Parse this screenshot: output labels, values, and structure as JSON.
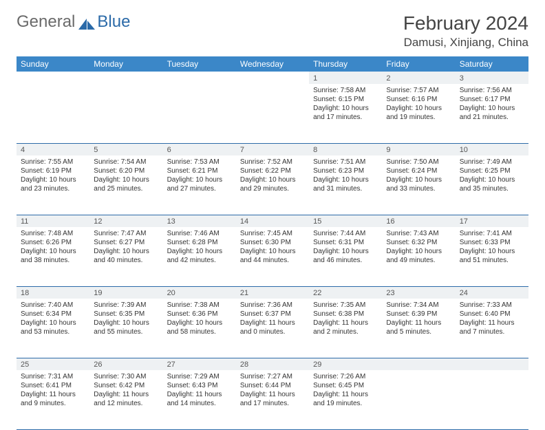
{
  "brand": {
    "general": "General",
    "blue": "Blue"
  },
  "title": "February 2024",
  "location": "Damusi, Xinjiang, China",
  "colors": {
    "header_bg": "#3b87c8",
    "border": "#2b6aa8",
    "daynum_bg": "#eef1f3",
    "text": "#333333",
    "logo_blue": "#2b6aa8",
    "logo_grey": "#6a6a6a"
  },
  "day_headers": [
    "Sunday",
    "Monday",
    "Tuesday",
    "Wednesday",
    "Thursday",
    "Friday",
    "Saturday"
  ],
  "layout": {
    "first_weekday_index": 4,
    "days_in_month": 29
  },
  "days": {
    "1": {
      "sunrise": "7:58 AM",
      "sunset": "6:15 PM",
      "daylight": "10 hours and 17 minutes."
    },
    "2": {
      "sunrise": "7:57 AM",
      "sunset": "6:16 PM",
      "daylight": "10 hours and 19 minutes."
    },
    "3": {
      "sunrise": "7:56 AM",
      "sunset": "6:17 PM",
      "daylight": "10 hours and 21 minutes."
    },
    "4": {
      "sunrise": "7:55 AM",
      "sunset": "6:19 PM",
      "daylight": "10 hours and 23 minutes."
    },
    "5": {
      "sunrise": "7:54 AM",
      "sunset": "6:20 PM",
      "daylight": "10 hours and 25 minutes."
    },
    "6": {
      "sunrise": "7:53 AM",
      "sunset": "6:21 PM",
      "daylight": "10 hours and 27 minutes."
    },
    "7": {
      "sunrise": "7:52 AM",
      "sunset": "6:22 PM",
      "daylight": "10 hours and 29 minutes."
    },
    "8": {
      "sunrise": "7:51 AM",
      "sunset": "6:23 PM",
      "daylight": "10 hours and 31 minutes."
    },
    "9": {
      "sunrise": "7:50 AM",
      "sunset": "6:24 PM",
      "daylight": "10 hours and 33 minutes."
    },
    "10": {
      "sunrise": "7:49 AM",
      "sunset": "6:25 PM",
      "daylight": "10 hours and 35 minutes."
    },
    "11": {
      "sunrise": "7:48 AM",
      "sunset": "6:26 PM",
      "daylight": "10 hours and 38 minutes."
    },
    "12": {
      "sunrise": "7:47 AM",
      "sunset": "6:27 PM",
      "daylight": "10 hours and 40 minutes."
    },
    "13": {
      "sunrise": "7:46 AM",
      "sunset": "6:28 PM",
      "daylight": "10 hours and 42 minutes."
    },
    "14": {
      "sunrise": "7:45 AM",
      "sunset": "6:30 PM",
      "daylight": "10 hours and 44 minutes."
    },
    "15": {
      "sunrise": "7:44 AM",
      "sunset": "6:31 PM",
      "daylight": "10 hours and 46 minutes."
    },
    "16": {
      "sunrise": "7:43 AM",
      "sunset": "6:32 PM",
      "daylight": "10 hours and 49 minutes."
    },
    "17": {
      "sunrise": "7:41 AM",
      "sunset": "6:33 PM",
      "daylight": "10 hours and 51 minutes."
    },
    "18": {
      "sunrise": "7:40 AM",
      "sunset": "6:34 PM",
      "daylight": "10 hours and 53 minutes."
    },
    "19": {
      "sunrise": "7:39 AM",
      "sunset": "6:35 PM",
      "daylight": "10 hours and 55 minutes."
    },
    "20": {
      "sunrise": "7:38 AM",
      "sunset": "6:36 PM",
      "daylight": "10 hours and 58 minutes."
    },
    "21": {
      "sunrise": "7:36 AM",
      "sunset": "6:37 PM",
      "daylight": "11 hours and 0 minutes."
    },
    "22": {
      "sunrise": "7:35 AM",
      "sunset": "6:38 PM",
      "daylight": "11 hours and 2 minutes."
    },
    "23": {
      "sunrise": "7:34 AM",
      "sunset": "6:39 PM",
      "daylight": "11 hours and 5 minutes."
    },
    "24": {
      "sunrise": "7:33 AM",
      "sunset": "6:40 PM",
      "daylight": "11 hours and 7 minutes."
    },
    "25": {
      "sunrise": "7:31 AM",
      "sunset": "6:41 PM",
      "daylight": "11 hours and 9 minutes."
    },
    "26": {
      "sunrise": "7:30 AM",
      "sunset": "6:42 PM",
      "daylight": "11 hours and 12 minutes."
    },
    "27": {
      "sunrise": "7:29 AM",
      "sunset": "6:43 PM",
      "daylight": "11 hours and 14 minutes."
    },
    "28": {
      "sunrise": "7:27 AM",
      "sunset": "6:44 PM",
      "daylight": "11 hours and 17 minutes."
    },
    "29": {
      "sunrise": "7:26 AM",
      "sunset": "6:45 PM",
      "daylight": "11 hours and 19 minutes."
    }
  },
  "labels": {
    "sunrise": "Sunrise: ",
    "sunset": "Sunset: ",
    "daylight": "Daylight: "
  }
}
